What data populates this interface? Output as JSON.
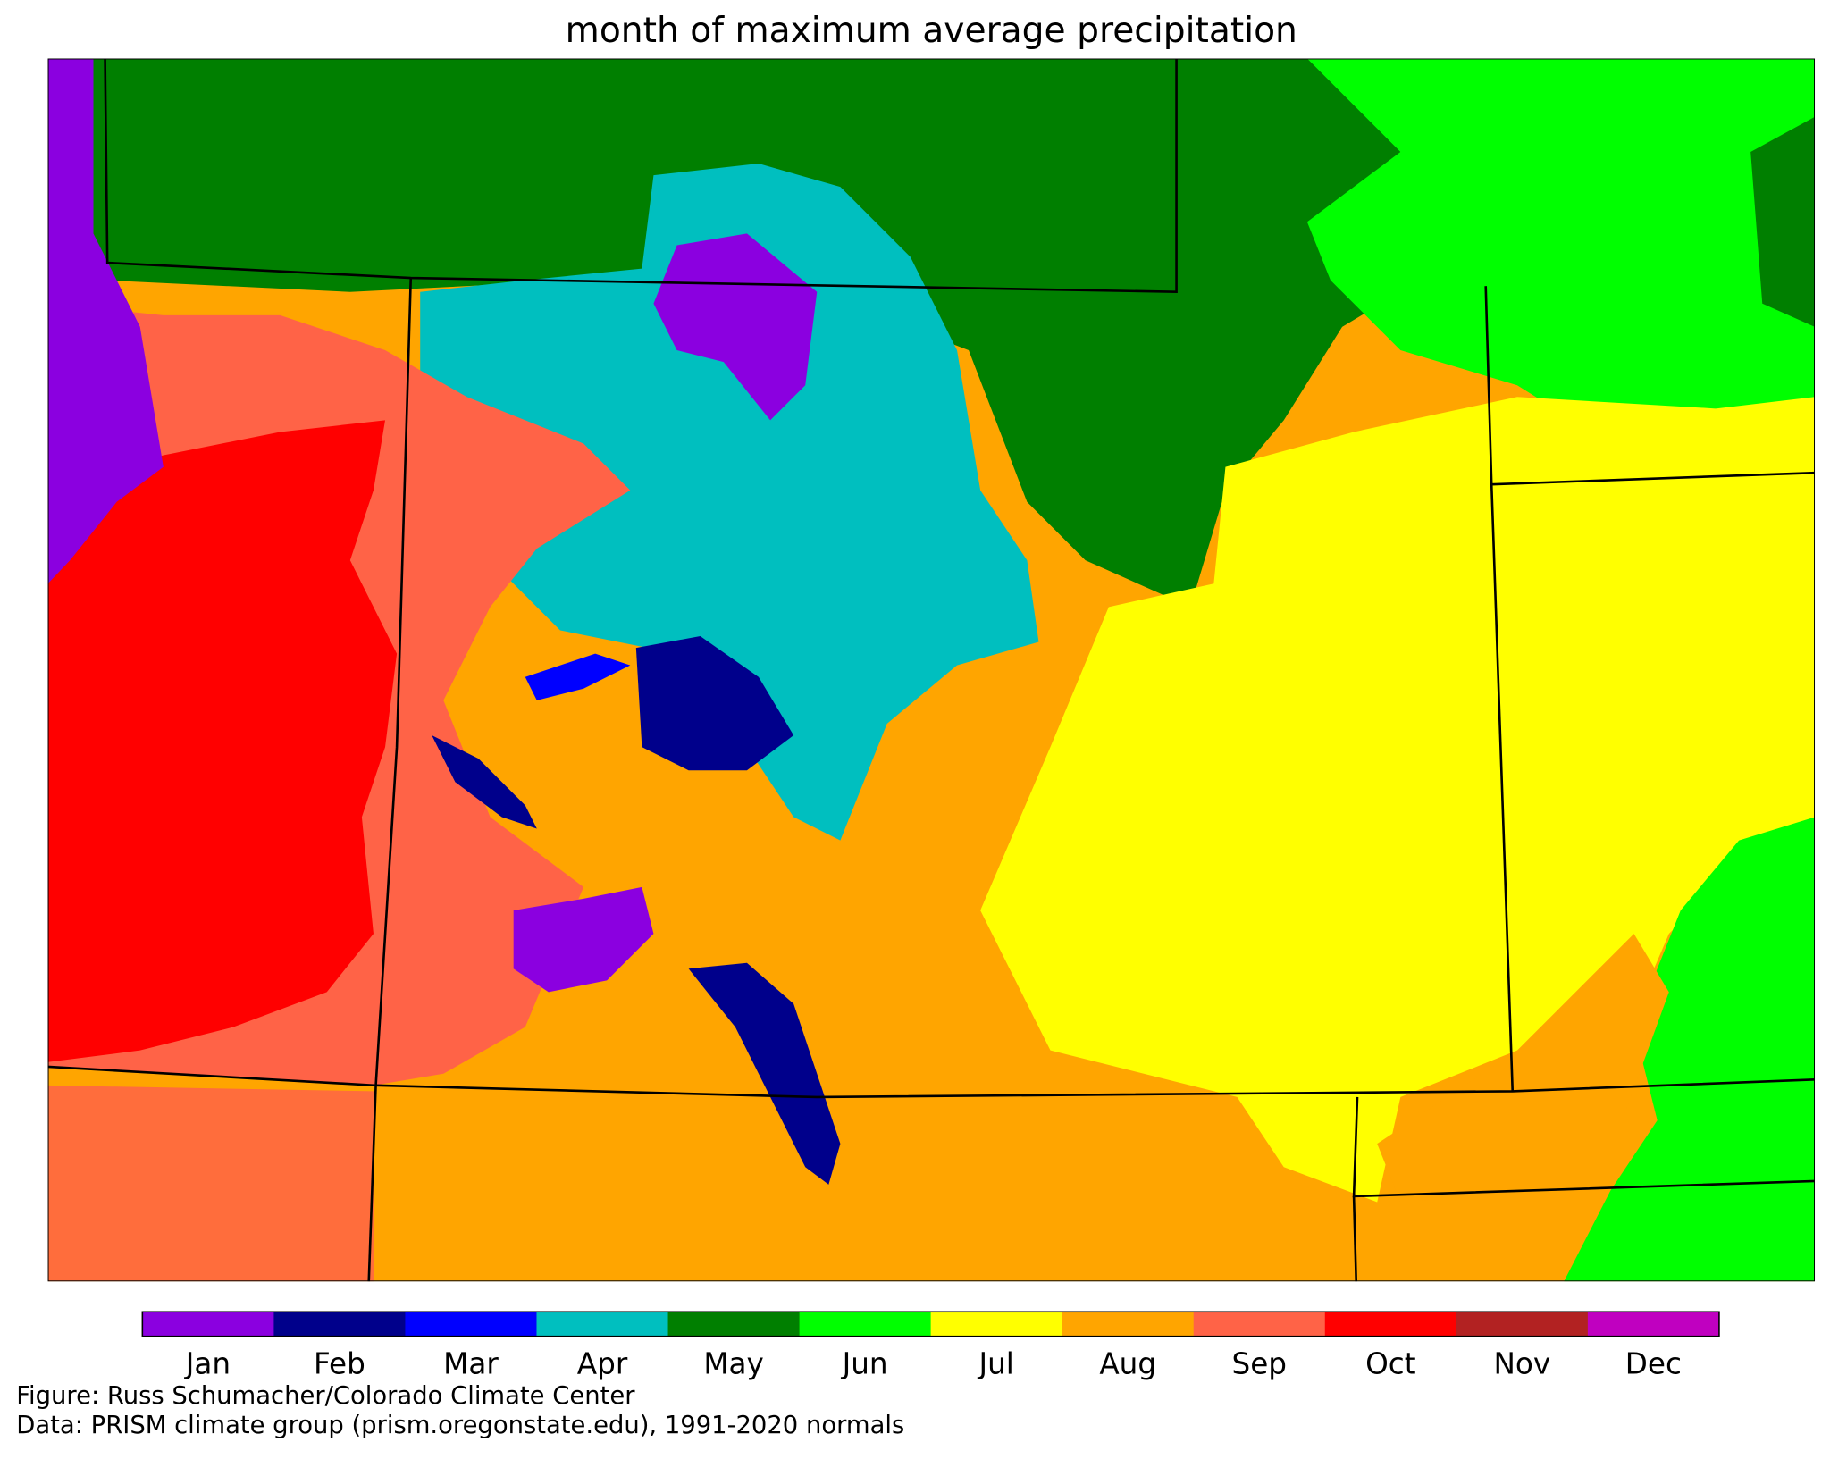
{
  "title": "month of maximum average precipitation",
  "legend": [
    {
      "label": "Jan",
      "color": "#8b00e0"
    },
    {
      "label": "Feb",
      "color": "#00008b"
    },
    {
      "label": "Mar",
      "color": "#0000ff"
    },
    {
      "label": "Apr",
      "color": "#00bfbf"
    },
    {
      "label": "May",
      "color": "#007f00"
    },
    {
      "label": "Jun",
      "color": "#00ff00"
    },
    {
      "label": "Jul",
      "color": "#ffff00"
    },
    {
      "label": "Aug",
      "color": "#ffa500"
    },
    {
      "label": "Sep",
      "color": "#ff6347"
    },
    {
      "label": "Oct",
      "color": "#ff0000"
    },
    {
      "label": "Nov",
      "color": "#b22222"
    },
    {
      "label": "Dec",
      "color": "#c000c0"
    }
  ],
  "credits": [
    "Figure: Russ Schumacher/Colorado Climate Center",
    "Data: PRISM climate group (prism.oregonstate.edu), 1991-2020 normals"
  ]
}
